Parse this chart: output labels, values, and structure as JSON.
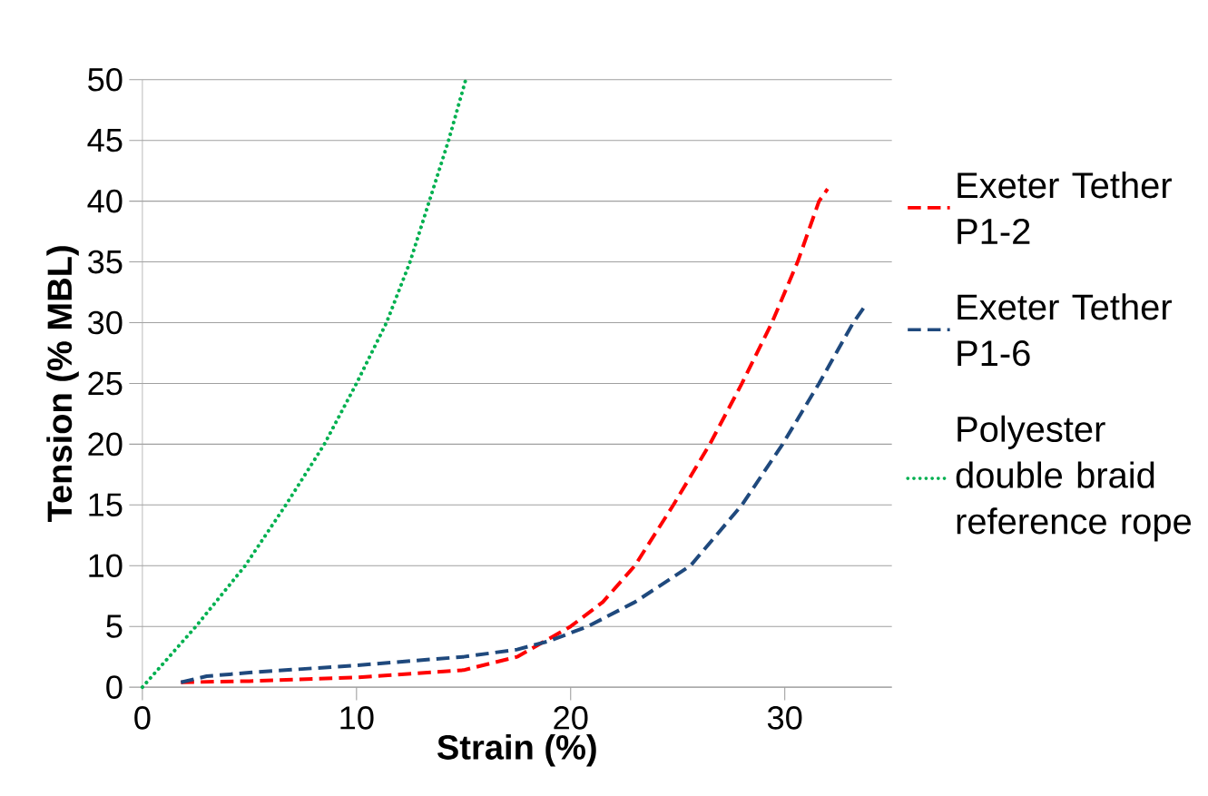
{
  "chart_data": {
    "type": "line",
    "xlabel": "Strain (%)",
    "ylabel": "Tension (% MBL)",
    "xlim": [
      0,
      35
    ],
    "ylim": [
      0,
      50
    ],
    "xticks": [
      0,
      10,
      20,
      30
    ],
    "yticks": [
      0,
      5,
      10,
      15,
      20,
      25,
      30,
      35,
      40,
      45,
      50
    ],
    "grid": "y",
    "legend": "right",
    "series": [
      {
        "name": "Exeter Tether P1-2",
        "color": "#ff0000",
        "line_style": "dashed",
        "x": [
          1.8,
          5,
          10,
          15,
          17.5,
          20,
          21.5,
          23,
          24.8,
          26.5,
          28,
          29.4,
          30.6,
          31.6,
          32
        ],
        "values": [
          0.4,
          0.5,
          0.8,
          1.4,
          2.5,
          5,
          7,
          10,
          15,
          20,
          25,
          30,
          35,
          40,
          41
        ]
      },
      {
        "name": "Exeter Tether P1-6",
        "color": "#1f497d",
        "line_style": "dashed",
        "x": [
          1.8,
          3,
          5,
          10,
          15,
          17.5,
          19,
          20.8,
          23,
          25.6,
          28,
          29.9,
          31.6,
          33.2,
          33.8
        ],
        "values": [
          0.4,
          0.9,
          1.2,
          1.8,
          2.5,
          3.1,
          3.8,
          5,
          7,
          10,
          15,
          20,
          25,
          30,
          31.5
        ]
      },
      {
        "name": "Polyester double braid reference rope",
        "color": "#00b050",
        "line_style": "dotted",
        "x": [
          0,
          2.5,
          4.8,
          6.7,
          8.5,
          10,
          11.4,
          12.5,
          13.4,
          14.3,
          15.1
        ],
        "values": [
          0,
          5,
          10,
          15,
          20,
          25,
          30,
          35,
          40,
          45,
          50
        ]
      }
    ]
  }
}
